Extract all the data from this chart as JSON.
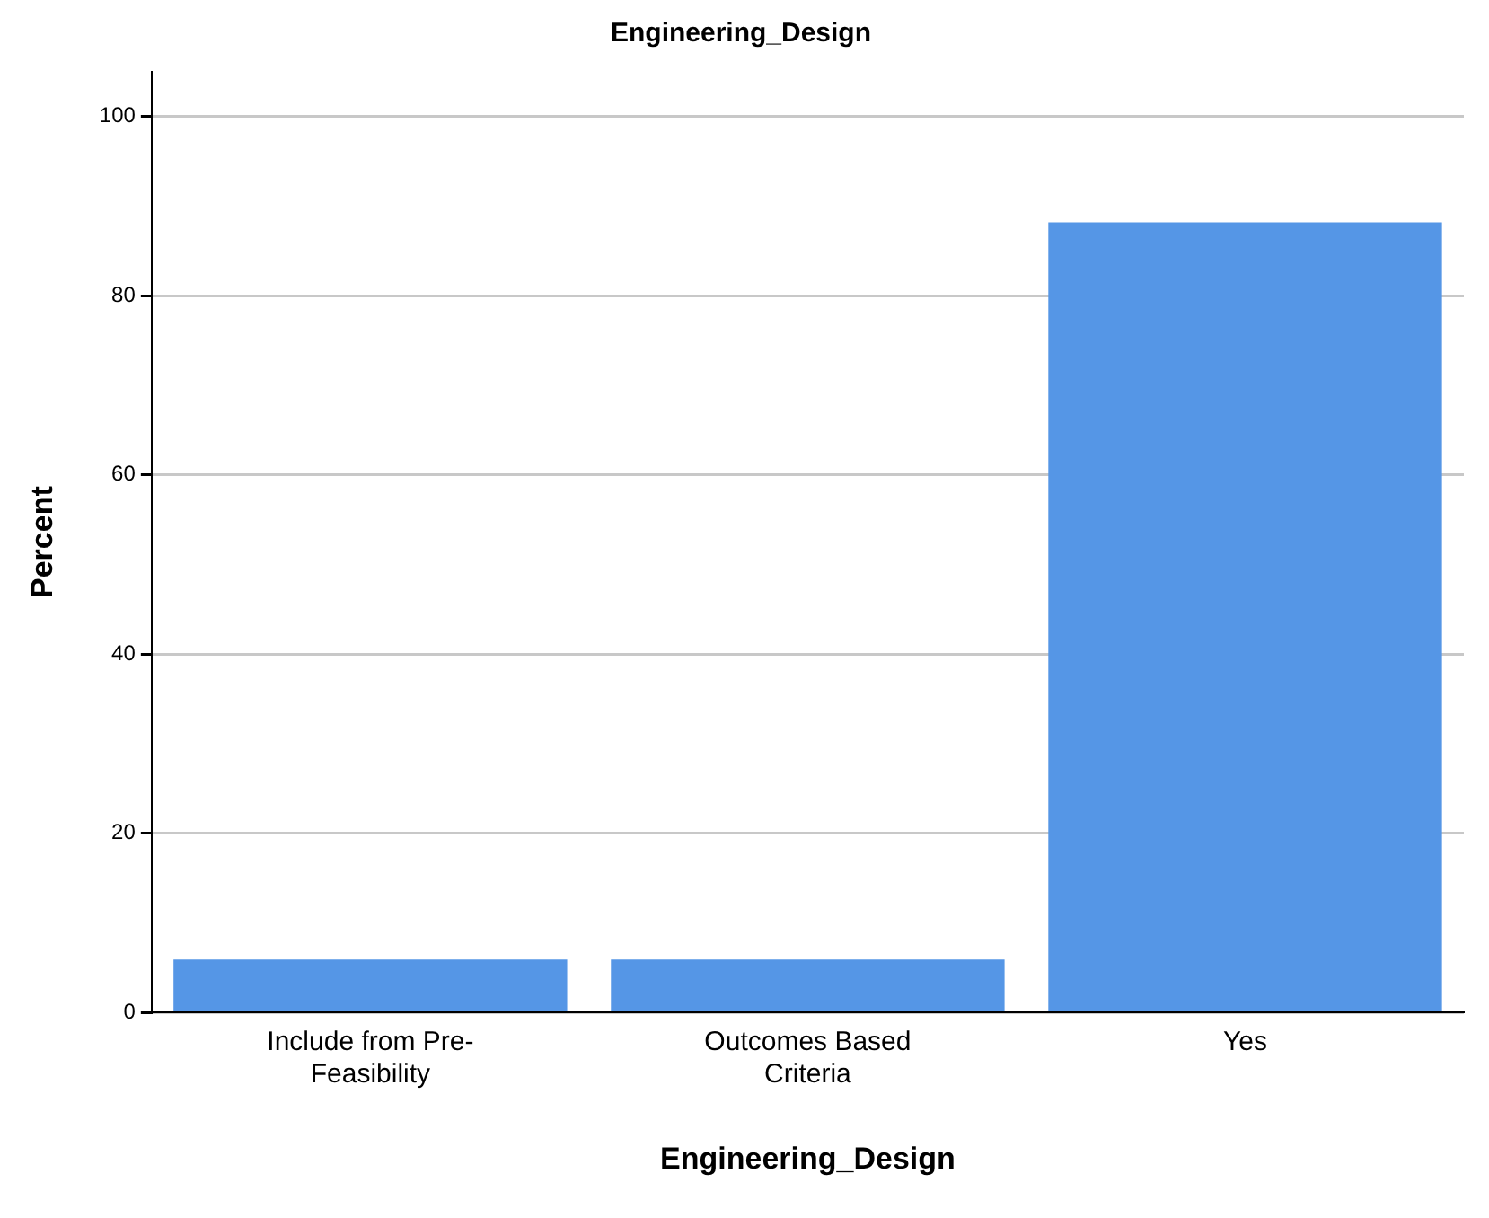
{
  "chart_data": {
    "type": "bar",
    "title": "Engineering_Design",
    "xlabel": "Engineering_Design",
    "ylabel": "Percent",
    "categories": [
      "Include from Pre-Feasibility",
      "Outcomes Based Criteria",
      "Yes"
    ],
    "values": [
      5.9,
      5.9,
      88.2
    ],
    "color": "#5596e6",
    "ylim": [
      0,
      105
    ],
    "yticks": [
      0,
      20,
      40,
      60,
      80,
      100
    ],
    "grid": "y"
  }
}
